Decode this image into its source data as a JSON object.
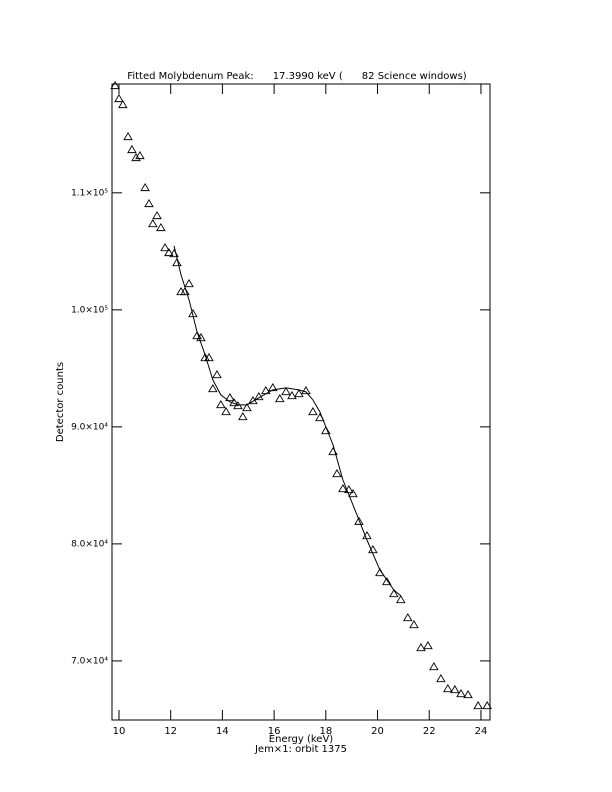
{
  "chart_data": {
    "type": "scatter",
    "title": "Fitted Molybdenum Peak:      17.3990 keV (      82 Science windows)",
    "x_label": "Energy (keV)",
    "subtitle": "Jem×1: orbit 1375",
    "y_label": "Detector counts",
    "xlim": [
      9.73,
      24.35
    ],
    "ylim": [
      64950,
      119300
    ],
    "xticks": [
      10,
      12,
      14,
      16,
      18,
      20,
      22,
      24
    ],
    "yticks": [
      {
        "value": 70000,
        "label": "7.0×10⁴"
      },
      {
        "value": 80000,
        "label": "8.0×10⁴"
      },
      {
        "value": 90000,
        "label": "9.0×10⁴"
      },
      {
        "value": 100000,
        "label": "1.0×10⁵"
      },
      {
        "value": 110000,
        "label": "1.1×10⁵"
      }
    ],
    "color": "#000000",
    "series": [
      {
        "style": "triangle",
        "x": [
          9.85,
          10.0,
          10.15,
          10.35,
          10.5,
          10.66,
          10.81,
          11.01,
          11.16,
          11.31,
          11.47,
          11.62,
          11.78,
          11.93,
          12.13,
          12.24,
          12.4,
          12.55,
          12.71,
          12.86,
          13.02,
          13.17,
          13.33,
          13.48,
          13.63,
          13.79,
          13.94,
          14.14,
          14.29,
          14.45,
          14.6,
          14.79,
          14.95,
          15.18,
          15.41,
          15.68,
          15.95,
          16.22,
          16.46,
          16.69,
          16.96,
          17.23,
          17.5,
          17.77,
          18.0,
          18.28,
          18.43,
          18.66,
          18.89,
          19.05,
          19.28,
          19.59,
          19.82,
          20.09,
          20.36,
          20.63,
          20.9,
          21.17,
          21.41,
          21.68,
          21.95,
          22.18,
          22.45,
          22.72,
          22.99,
          23.23,
          23.5,
          23.89,
          24.24
        ],
        "values": [
          119145,
          118034,
          117521,
          114786,
          113675,
          112991,
          113162,
          110427,
          109060,
          107350,
          108034,
          107009,
          105299,
          104872,
          104786,
          104017,
          101538,
          101538,
          102222,
          99658,
          97778,
          97607,
          95897,
          95897,
          93248,
          94444,
          91880,
          91282,
          92479,
          92051,
          91795,
          90855,
          91624,
          92222,
          92564,
          93077,
          93333,
          92393,
          92991,
          92650,
          92821,
          93077,
          91282,
          90769,
          89658,
          87863,
          85983,
          84701,
          84615,
          84274,
          81906,
          80684,
          79487,
          77521,
          76752,
          75726,
          75214,
          73675,
          73077,
          71111,
          71282,
          69487,
          68462,
          67607,
          67521,
          67179,
          67094,
          66154,
          66154
        ]
      },
      {
        "style": "line",
        "x": [
          12.13,
          12.4,
          12.71,
          13.02,
          13.33,
          13.63,
          13.94,
          14.29,
          14.6,
          14.95,
          15.41,
          15.95,
          16.46,
          16.96,
          17.23,
          17.5,
          17.77,
          18.28,
          18.66,
          19.05,
          19.59,
          20.09,
          20.63,
          20.9
        ],
        "values": [
          105470,
          102991,
          100855,
          98120,
          96154,
          94017,
          92735,
          92137,
          91880,
          91880,
          92479,
          93162,
          93333,
          93162,
          92991,
          92308,
          91282,
          88462,
          85470,
          83333,
          80342,
          77778,
          76068,
          75556
        ]
      }
    ]
  }
}
